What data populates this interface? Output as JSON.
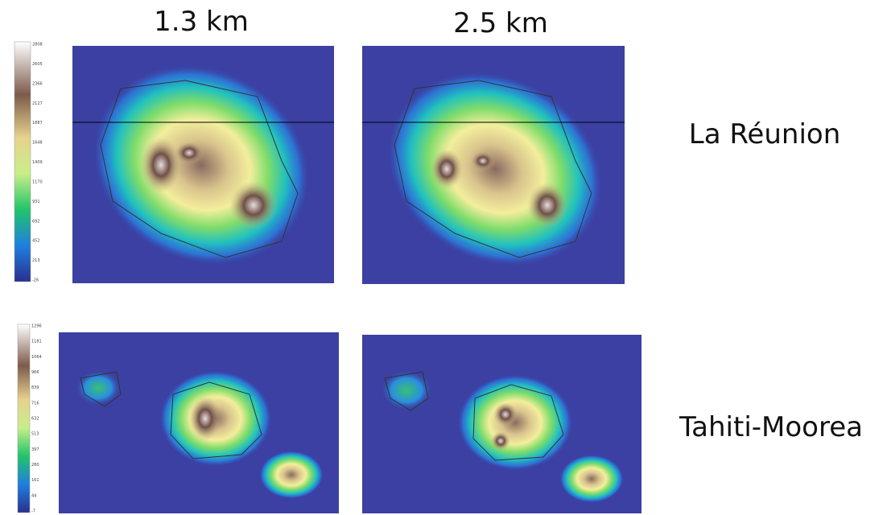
{
  "columns": [
    "1.3 km",
    "2.5 km"
  ],
  "rows": [
    "La Réunion",
    "Tahiti-Moorea"
  ],
  "colorbars": [
    {
      "ticks": [
        "2808",
        "2605",
        "2366",
        "2127",
        "1887",
        "1648",
        "1409",
        "1170",
        "931",
        "692",
        "452",
        "213",
        "-26"
      ]
    },
    {
      "ticks": [
        "1296",
        "1181",
        "1064",
        "966",
        "839",
        "716",
        "632",
        "513",
        "397",
        "280",
        "161",
        "44",
        "-7"
      ]
    }
  ]
}
